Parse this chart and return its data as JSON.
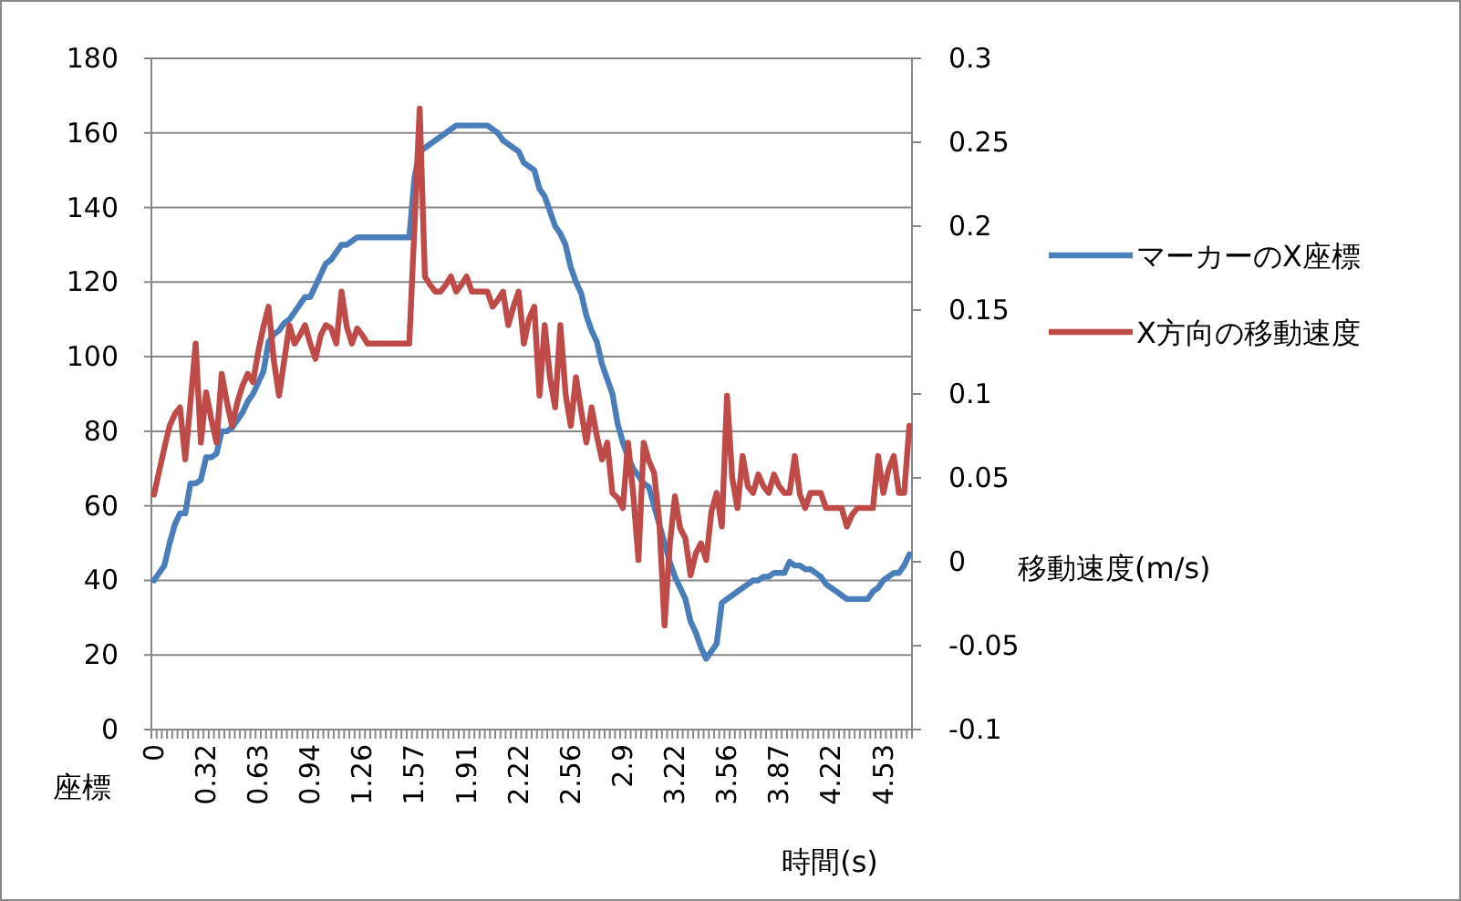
{
  "chart_data": {
    "type": "line",
    "xlabel": "時間(s)",
    "ylabel": "座標",
    "y2label": "移動速度(m/s)",
    "categories": [
      "0",
      null,
      null,
      null,
      null,
      null,
      null,
      null,
      null,
      null,
      "0.32",
      null,
      null,
      null,
      null,
      null,
      null,
      null,
      null,
      null,
      "0.63",
      null,
      null,
      null,
      null,
      null,
      null,
      null,
      null,
      null,
      "0.94",
      null,
      null,
      null,
      null,
      null,
      null,
      null,
      null,
      null,
      "1.26",
      null,
      null,
      null,
      null,
      null,
      null,
      null,
      null,
      null,
      "1.57",
      null,
      null,
      null,
      null,
      null,
      null,
      null,
      null,
      null,
      "1.91",
      null,
      null,
      null,
      null,
      null,
      null,
      null,
      null,
      null,
      "2.22",
      null,
      null,
      null,
      null,
      null,
      null,
      null,
      null,
      null,
      "2.56",
      null,
      null,
      null,
      null,
      null,
      null,
      null,
      null,
      null,
      "2.9",
      null,
      null,
      null,
      null,
      null,
      null,
      null,
      null,
      null,
      "3.22",
      null,
      null,
      null,
      null,
      null,
      null,
      null,
      null,
      null,
      "3.56",
      null,
      null,
      null,
      null,
      null,
      null,
      null,
      null,
      null,
      "3.87",
      null,
      null,
      null,
      null,
      null,
      null,
      null,
      null,
      null,
      "4.22",
      null,
      null,
      null,
      null,
      null,
      null,
      null,
      null,
      null,
      "4.53",
      null,
      null,
      null,
      null,
      null
    ],
    "ylim": [
      0,
      180
    ],
    "yticks": [
      0,
      20,
      40,
      60,
      80,
      100,
      120,
      140,
      160,
      180
    ],
    "y2lim": [
      -0.1,
      0.3
    ],
    "y2ticks": [
      -0.1,
      -0.05,
      0,
      0.05,
      0.1,
      0.15,
      0.2,
      0.25,
      0.3
    ],
    "grid": "y",
    "legend": "right",
    "marker": "none",
    "line_style": "solid",
    "series": [
      {
        "name": "マーカーのX座標",
        "color": "#4a7ebb",
        "values": [
          40,
          42,
          44,
          50,
          55,
          58,
          58,
          66,
          66,
          67,
          73,
          73,
          74,
          80,
          80,
          81,
          83,
          85,
          88,
          90,
          93,
          96,
          104,
          106,
          107,
          109,
          110,
          112,
          114,
          116,
          116,
          119,
          122,
          125,
          126,
          128,
          130,
          130,
          131,
          132,
          132,
          132,
          132,
          132,
          132,
          132,
          132,
          132,
          132,
          132,
          148,
          155,
          156,
          157,
          158,
          159,
          160,
          161,
          162,
          162,
          162,
          162,
          162,
          162,
          162,
          161,
          160,
          158,
          157,
          156,
          155,
          152,
          151,
          150,
          145,
          143,
          139,
          135,
          133,
          130,
          124,
          120,
          117,
          111,
          107,
          104,
          98,
          94,
          90,
          82,
          77,
          73,
          70,
          68,
          66,
          65,
          60,
          55,
          50,
          45,
          41,
          38,
          35,
          29,
          26,
          22,
          19,
          21,
          23,
          34,
          35,
          36,
          37,
          38,
          39,
          40,
          40,
          41,
          41,
          42,
          42,
          42,
          45,
          44,
          44,
          43,
          43,
          42,
          41,
          39,
          38,
          37,
          36,
          35,
          35,
          35,
          35,
          35,
          37,
          38,
          40,
          41,
          42,
          42,
          44,
          47
        ]
      },
      {
        "name": "X方向の移動速度",
        "color": "#be4b48",
        "axis": "y2",
        "values": [
          0.04,
          0.054,
          0.068,
          0.081,
          0.088,
          0.092,
          0.061,
          0.095,
          0.13,
          0.071,
          0.101,
          0.085,
          0.071,
          0.112,
          0.095,
          0.081,
          0.095,
          0.105,
          0.112,
          0.107,
          0.125,
          0.14,
          0.152,
          0.12,
          0.099,
          0.12,
          0.141,
          0.13,
          0.135,
          0.141,
          0.13,
          0.121,
          0.135,
          0.141,
          0.139,
          0.13,
          0.161,
          0.14,
          0.13,
          0.139,
          0.135,
          0.13,
          0.13,
          0.13,
          0.13,
          0.13,
          0.13,
          0.13,
          0.13,
          0.13,
          0.2,
          0.27,
          0.17,
          0.165,
          0.161,
          0.161,
          0.165,
          0.17,
          0.161,
          0.165,
          0.17,
          0.161,
          0.161,
          0.161,
          0.161,
          0.152,
          0.156,
          0.161,
          0.141,
          0.152,
          0.161,
          0.13,
          0.145,
          0.152,
          0.099,
          0.141,
          0.11,
          0.092,
          0.141,
          0.1,
          0.081,
          0.11,
          0.09,
          0.071,
          0.092,
          0.075,
          0.061,
          0.071,
          0.041,
          0.038,
          0.032,
          0.071,
          0.04,
          0.001,
          0.071,
          0.06,
          0.053,
          0.024,
          -0.038,
          0.01,
          0.039,
          0.02,
          0.014,
          -0.008,
          0.005,
          0.011,
          0.001,
          0.03,
          0.041,
          0.021,
          0.099,
          0.05,
          0.032,
          0.063,
          0.045,
          0.041,
          0.052,
          0.045,
          0.041,
          0.052,
          0.045,
          0.041,
          0.041,
          0.063,
          0.04,
          0.032,
          0.041,
          0.041,
          0.041,
          0.032,
          0.032,
          0.032,
          0.032,
          0.021,
          0.028,
          0.032,
          0.032,
          0.032,
          0.032,
          0.063,
          0.041,
          0.055,
          0.063,
          0.041,
          0.041,
          0.081
        ]
      }
    ]
  }
}
